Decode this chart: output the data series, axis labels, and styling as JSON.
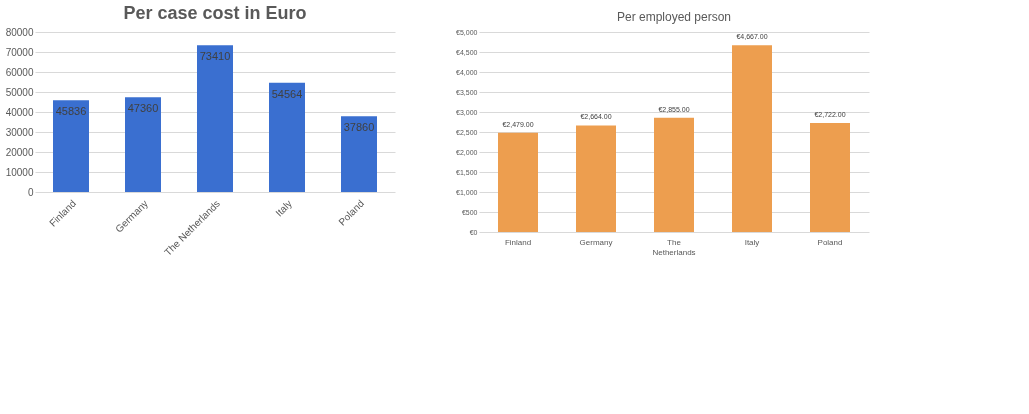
{
  "chart_data": [
    {
      "type": "bar",
      "title": "Per case cost in Euro",
      "categories": [
        "Finland",
        "Germany",
        "The Netherlands",
        "Italy",
        "Poland"
      ],
      "series": [
        {
          "color": "#3a6fd0",
          "values": [
            45836,
            47360,
            73410,
            54564,
            37860
          ]
        }
      ],
      "ylim": [
        0,
        80000
      ],
      "yticks": [
        0,
        10000,
        20000,
        30000,
        40000,
        50000,
        60000,
        70000,
        80000
      ],
      "grid": "y",
      "data_labels": true
    },
    {
      "type": "bar",
      "title": "Per employed person",
      "categories": [
        "Finland",
        "Germany",
        "The Netherlands",
        "Italy",
        "Poland"
      ],
      "series": [
        {
          "color": "#ed9e4f",
          "values": [
            2479,
            2664,
            2855,
            4667,
            2722
          ]
        }
      ],
      "value_labels": [
        "€2,479.00",
        "€2,664.00",
        "€2,855.00",
        "€4,667.00",
        "€2,722.00"
      ],
      "ylim": [
        0,
        5000
      ],
      "yticks": [
        {
          "value": 0,
          "label": "€0"
        },
        {
          "value": 500,
          "label": "€500"
        },
        {
          "value": 1000,
          "label": "€1,000"
        },
        {
          "value": 1500,
          "label": "€1,500"
        },
        {
          "value": 2000,
          "label": "€2,000"
        },
        {
          "value": 2500,
          "label": "€2,500"
        },
        {
          "value": 3000,
          "label": "€3,000"
        },
        {
          "value": 3500,
          "label": "€3,500"
        },
        {
          "value": 4000,
          "label": "€4,000"
        },
        {
          "value": 4500,
          "label": "€4,500"
        },
        {
          "value": 5000,
          "label": "€5,000"
        }
      ],
      "grid": "y"
    }
  ]
}
